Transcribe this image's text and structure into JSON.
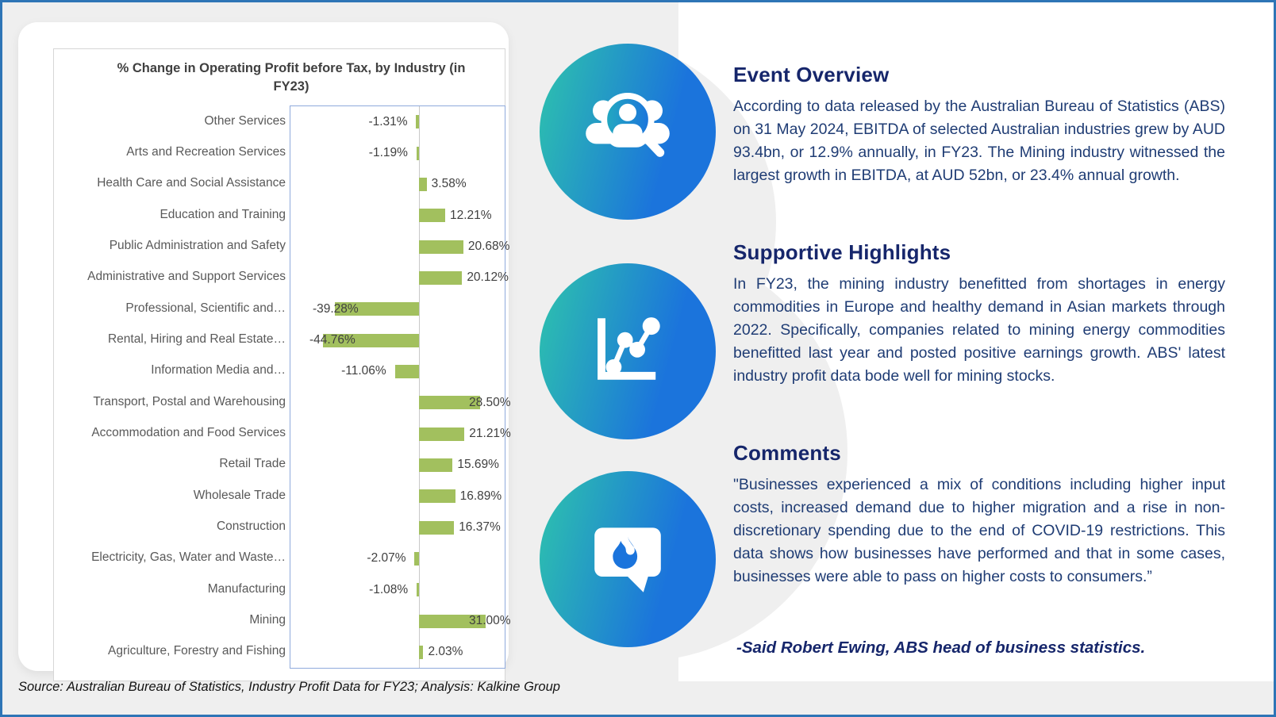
{
  "chart_data": {
    "type": "bar",
    "orientation": "horizontal",
    "title": "% Change in Operating Profit before Tax, by Industry (in FY23)",
    "categories": [
      "Other Services",
      "Arts and Recreation Services",
      "Health Care and Social Assistance",
      "Education and Training",
      "Public Administration and Safety",
      "Administrative and Support Services",
      "Professional, Scientific and…",
      "Rental, Hiring and Real Estate…",
      "Information Media and…",
      "Transport, Postal and Warehousing",
      "Accommodation and Food Services",
      "Retail Trade",
      "Wholesale Trade",
      "Construction",
      "Electricity, Gas, Water and Waste…",
      "Manufacturing",
      "Mining",
      "Agriculture, Forestry and Fishing"
    ],
    "values": [
      -1.31,
      -1.19,
      3.58,
      12.21,
      20.68,
      20.12,
      -39.28,
      -44.76,
      -11.06,
      28.5,
      21.21,
      15.69,
      16.89,
      16.37,
      -2.07,
      -1.08,
      31.0,
      2.03
    ],
    "labels": [
      "-1.31%",
      "-1.19%",
      "3.58%",
      "12.21%",
      "20.68%",
      "20.12%",
      "-39.28%",
      "-44.76%",
      "-11.06%",
      "28.50%",
      "21.21%",
      "15.69%",
      "16.89%",
      "16.37%",
      "-2.07%",
      "-1.08%",
      "31.00%",
      "2.03%"
    ],
    "xlim": [
      -60,
      40
    ],
    "grid": false,
    "legend": "none",
    "bar_color": "#a2c05e",
    "value_label_color": "#404040",
    "category_label_color": "#595959"
  },
  "sections": [
    {
      "title": "Event Overview",
      "icon": "people-search-icon",
      "body": "According to data released by the Australian Bureau of Statistics (ABS) on 31 May 2024, EBITDA of selected Australian industries grew by AUD 93.4bn, or 12.9% annually, in FY23. The Mining industry witnessed the largest growth in EBITDA, at AUD 52bn, or 23.4% annual growth."
    },
    {
      "title": "Supportive Highlights",
      "icon": "line-chart-icon",
      "body": "In FY23, the mining industry benefitted from shortages in energy commodities in Europe and healthy demand in Asian markets through 2022. Specifically, companies related to mining energy commodities benefitted last year and posted positive earnings growth. ABS' latest industry profit data bode well for mining stocks."
    },
    {
      "title": "Comments",
      "icon": "chat-flame-icon",
      "body": "\"Businesses experienced a mix of conditions including higher input costs, increased demand due to higher migration and a rise in non-discretionary spending due to the end of COVID-19 restrictions. This data shows how businesses have performed and that in some cases, businesses were able to pass on higher costs to consumers.”",
      "attribution": "-Said Robert Ewing, ABS head of business statistics."
    }
  ],
  "footer": {
    "source_note": "Source: Australian Bureau of Statistics, Industry Profit Data for FY23; Analysis: Kalkine Group"
  },
  "colors": {
    "frame_border": "#2E75B6",
    "background_gray": "#efefef",
    "panel_white": "#ffffff",
    "bar_green": "#a2c05e",
    "heading_navy": "#16266b",
    "body_navy": "#1f3c74",
    "icon_gradient_start": "#2ec4ac",
    "icon_gradient_end": "#1b74dc",
    "plot_border": "#8faadc"
  }
}
